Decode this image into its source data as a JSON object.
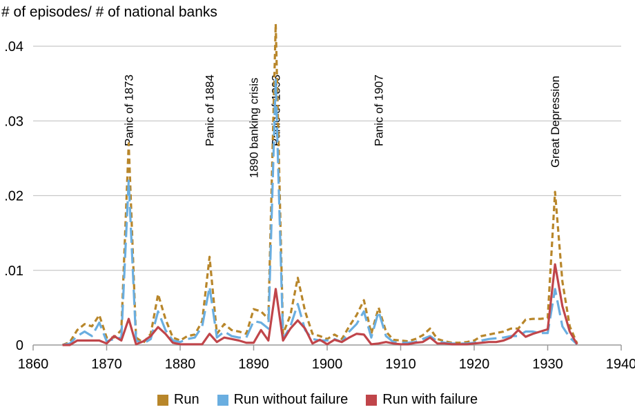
{
  "chart_data": {
    "type": "line",
    "title": "",
    "xlabel": "",
    "ylabel": "# of episodes/ # of national banks",
    "xlim": [
      1860,
      1940
    ],
    "ylim": [
      0,
      0.042
    ],
    "x_ticks": [
      1860,
      1870,
      1880,
      1890,
      1900,
      1910,
      1920,
      1930,
      1940
    ],
    "x_tick_labels": [
      "1860",
      "1870",
      "1880",
      "1890",
      "1900",
      "1910",
      "1920",
      "1930",
      "1940"
    ],
    "y_ticks": [
      0,
      0.01,
      0.02,
      0.03,
      0.04
    ],
    "y_tick_labels": [
      "0",
      ".01",
      ".02",
      ".03",
      ".04"
    ],
    "grid": "horizontal",
    "legend_position": "bottom",
    "annotations": [
      {
        "text": "Panic of 1873",
        "x": 1873
      },
      {
        "text": "Panic of 1884",
        "x": 1884
      },
      {
        "text": "1890 banking crisis",
        "x": 1890
      },
      {
        "text": "Panic of 1893",
        "x": 1893
      },
      {
        "text": "Panic of 1907",
        "x": 1907
      },
      {
        "text": "Great Depression",
        "x": 1931
      }
    ],
    "x": [
      1864,
      1865,
      1866,
      1867,
      1868,
      1869,
      1870,
      1871,
      1872,
      1873,
      1874,
      1875,
      1876,
      1877,
      1878,
      1879,
      1880,
      1881,
      1882,
      1883,
      1884,
      1885,
      1886,
      1887,
      1888,
      1889,
      1890,
      1891,
      1892,
      1893,
      1894,
      1895,
      1896,
      1897,
      1898,
      1899,
      1900,
      1901,
      1902,
      1903,
      1904,
      1905,
      1906,
      1907,
      1908,
      1909,
      1910,
      1911,
      1912,
      1913,
      1914,
      1915,
      1916,
      1917,
      1918,
      1919,
      1920,
      1921,
      1922,
      1923,
      1924,
      1925,
      1926,
      1927,
      1928,
      1929,
      1930,
      1931,
      1932,
      1933,
      1934
    ],
    "series": [
      {
        "name": "Run",
        "color": "#b8862a",
        "style": "short-dash",
        "values": [
          0,
          0.0004,
          0.002,
          0.0028,
          0.0025,
          0.004,
          0.001,
          0.001,
          0.002,
          0.027,
          0.001,
          0.0003,
          0.0015,
          0.0068,
          0.0035,
          0.001,
          0.0006,
          0.0012,
          0.0014,
          0.0032,
          0.0118,
          0.0015,
          0.0028,
          0.002,
          0.0018,
          0.0015,
          0.0048,
          0.0045,
          0.0035,
          0.043,
          0.0015,
          0.004,
          0.009,
          0.0045,
          0.0015,
          0.0012,
          0.0008,
          0.0014,
          0.0008,
          0.0025,
          0.004,
          0.006,
          0.0015,
          0.005,
          0.0018,
          0.0007,
          0.0006,
          0.0005,
          0.0008,
          0.0013,
          0.0022,
          0.0008,
          0.0005,
          0.0003,
          0.0003,
          0.0004,
          0.0006,
          0.0012,
          0.0014,
          0.0016,
          0.0018,
          0.0022,
          0.0022,
          0.0034,
          0.0035,
          0.0035,
          0.0036,
          0.0205,
          0.0085,
          0.0025,
          0.0002
        ]
      },
      {
        "name": "Run without failure",
        "color": "#6aaee0",
        "style": "long-dash",
        "values": [
          0,
          0.0002,
          0.0012,
          0.0018,
          0.0012,
          0.003,
          0.0005,
          0.0008,
          0.001,
          0.022,
          0.0006,
          0.0002,
          0.0008,
          0.0045,
          0.002,
          0.0006,
          0.0004,
          0.0008,
          0.001,
          0.0025,
          0.0078,
          0.001,
          0.0018,
          0.0012,
          0.001,
          0.001,
          0.0032,
          0.003,
          0.0022,
          0.0355,
          0.0008,
          0.0025,
          0.0055,
          0.002,
          0.0008,
          0.0006,
          0.0006,
          0.0008,
          0.0004,
          0.0018,
          0.0028,
          0.0045,
          0.001,
          0.0045,
          0.0012,
          0.0004,
          0.0003,
          0.0003,
          0.0004,
          0.0008,
          0.0012,
          0.0005,
          0.0003,
          0.0002,
          0.0002,
          0.0002,
          0.0003,
          0.0006,
          0.0008,
          0.0009,
          0.001,
          0.0012,
          0.0012,
          0.0018,
          0.0018,
          0.0016,
          0.0016,
          0.0075,
          0.0025,
          0.001,
          0.0001
        ]
      },
      {
        "name": "Run with failure",
        "color": "#c0454a",
        "style": "solid",
        "values": [
          0,
          0,
          0.0006,
          0.0006,
          0.0006,
          0.0006,
          0.0002,
          0.0012,
          0.0006,
          0.0035,
          0.0001,
          0.0005,
          0.0012,
          0.0024,
          0.0015,
          0.0003,
          0.0001,
          0.0001,
          0.0001,
          0.0001,
          0.0015,
          0.0004,
          0.001,
          0.0008,
          0.0006,
          0.0003,
          0.0003,
          0.002,
          0.0006,
          0.0075,
          0.0006,
          0.0022,
          0.0033,
          0.0022,
          0.0002,
          0.0007,
          0.0001,
          0.0007,
          0.0004,
          0.001,
          0.0015,
          0.0014,
          0.0001,
          0.0002,
          0.0004,
          0.0002,
          0.0001,
          0.0001,
          0.0003,
          0.0004,
          0.001,
          0.0002,
          0.0002,
          0.0001,
          0.0001,
          0.0001,
          0.0002,
          0.0003,
          0.0004,
          0.0004,
          0.0006,
          0.001,
          0.002,
          0.0011,
          0.0015,
          0.0018,
          0.0021,
          0.0108,
          0.0052,
          0.0018,
          0.0001
        ]
      }
    ]
  }
}
